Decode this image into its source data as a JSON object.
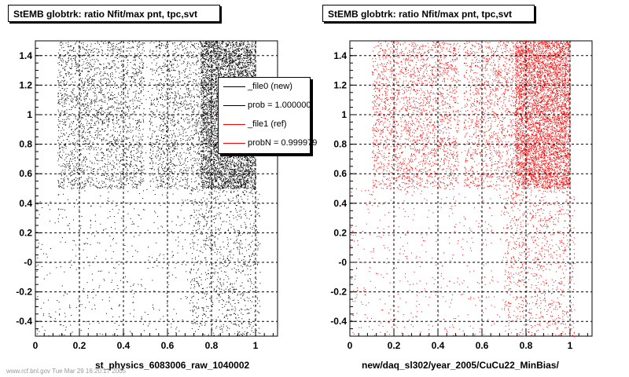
{
  "chart_data": [
    {
      "type": "scatter",
      "title": "StEMB globtrk: ratio Nfit/max pnt, tpc,svt",
      "xlabel": "st_physics_6083006_raw_1040002",
      "ylabel": "",
      "xlim": [
        0,
        1.1
      ],
      "ylim": [
        -0.5,
        1.5
      ],
      "xticks": [
        "0",
        "0.2",
        "0.4",
        "0.6",
        "0.8",
        "1"
      ],
      "yticks": [
        "-0.4",
        "-0.2",
        "-0",
        "0.2",
        "0.4",
        "0.6",
        "0.8",
        "1",
        "1.2",
        "1.4"
      ],
      "grid": true,
      "color": "#000000",
      "legend": {
        "placement": "top-right",
        "entries": [
          {
            "label": "_file0 (new)",
            "color": "#000000"
          },
          {
            "label": "prob = 1.000000",
            "color": "#000000"
          },
          {
            "label": "_file1 (ref)",
            "color": "#ff0000"
          },
          {
            "label": "probN = 0.999979",
            "color": "#ff0000"
          }
        ]
      },
      "regions": [
        {
          "x": [
            0.1,
            1.0
          ],
          "y": [
            0.5,
            1.5
          ],
          "density": "high"
        },
        {
          "x": [
            0.0,
            1.1
          ],
          "y": [
            -0.5,
            0.5
          ],
          "density": "low, increasing toward x = 0.9"
        }
      ]
    },
    {
      "type": "scatter",
      "title": "StEMB globtrk: ratio Nfit/max pnt, tpc,svt",
      "xlabel": "new/daq_sl302/year_2005/CuCu22_MinBias/",
      "ylabel": "",
      "xlim": [
        0,
        1.1
      ],
      "ylim": [
        -0.5,
        1.5
      ],
      "xticks": [
        "0",
        "0.2",
        "0.4",
        "0.6",
        "0.8",
        "1"
      ],
      "yticks": [
        "-0.4",
        "-0.2",
        "-0",
        "0.2",
        "0.4",
        "0.6",
        "0.8",
        "1",
        "1.2",
        "1.4"
      ],
      "grid": true,
      "color": "#ff0000",
      "regions": [
        {
          "x": [
            0.1,
            1.0
          ],
          "y": [
            0.5,
            1.5
          ],
          "density": "high"
        },
        {
          "x": [
            0.0,
            1.1
          ],
          "y": [
            -0.5,
            0.5
          ],
          "density": "low, increasing toward x = 0.9"
        }
      ]
    }
  ],
  "footer": "www.rcf.bnl.gov  Tue Mar 29 16:20:17 2005"
}
